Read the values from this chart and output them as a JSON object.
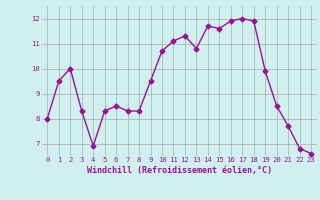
{
  "x": [
    0,
    1,
    2,
    3,
    4,
    5,
    6,
    7,
    8,
    9,
    10,
    11,
    12,
    13,
    14,
    15,
    16,
    17,
    18,
    19,
    20,
    21,
    22,
    23
  ],
  "y": [
    8.0,
    9.5,
    10.0,
    8.3,
    6.9,
    8.3,
    8.5,
    8.3,
    8.3,
    9.5,
    10.7,
    11.1,
    11.3,
    10.8,
    11.7,
    11.6,
    11.9,
    12.0,
    11.9,
    9.9,
    8.5,
    7.7,
    6.8,
    6.6
  ],
  "line_color": "#991199",
  "marker": "D",
  "marker_size": 2.5,
  "bg_color": "#d0f0f0",
  "grid_color": "#aaaaaa",
  "xlabel": "Windchill (Refroidissement éolien,°C)",
  "xlabel_color": "#991199",
  "tick_color": "#991199",
  "ylim": [
    6.5,
    12.5
  ],
  "xlim": [
    -0.5,
    23.5
  ],
  "yticks": [
    7,
    8,
    9,
    10,
    11,
    12
  ],
  "xticks": [
    0,
    1,
    2,
    3,
    4,
    5,
    6,
    7,
    8,
    9,
    10,
    11,
    12,
    13,
    14,
    15,
    16,
    17,
    18,
    19,
    20,
    21,
    22,
    23
  ]
}
